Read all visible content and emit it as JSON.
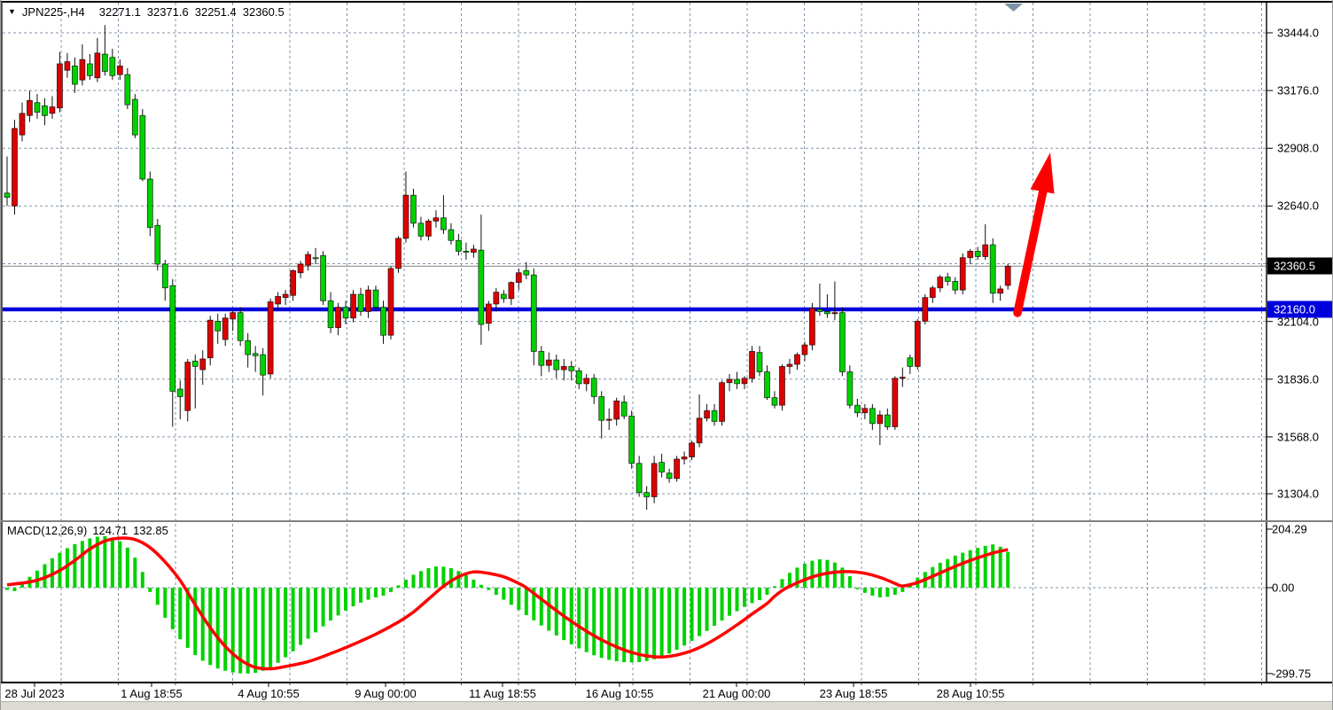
{
  "title": {
    "symbol_period": "JPN225-,H4",
    "open": "32271.1",
    "high": "32371.6",
    "low": "32251.4",
    "close": "32360.5"
  },
  "macd_panel": {
    "label": "MACD(12,26,9)",
    "main_value": "124.71",
    "signal_value": "132.85"
  },
  "badges": {
    "current_price": "32360.5",
    "support_price": "32160.0"
  },
  "colors": {
    "bull_candle": "#dd0101",
    "bear_candle": "#00d200",
    "wick": "#111111",
    "grid": "#8095aa",
    "macd_histogram": "#00d200",
    "macd_signal": "#ff0000",
    "support_line": "#0000dd",
    "current_price_line": "#909090",
    "current_badge_bg": "#000000",
    "support_badge_bg": "#0000dd",
    "arrow": "#ff0000",
    "shift_marker": "#7e93a8"
  },
  "chart_data": {
    "type": "candlestick_with_macd",
    "symbol": "JPN225-,H4",
    "timeframe": "H4",
    "price_axis_labels": [
      "33444.0",
      "33176.0",
      "32908.0",
      "32640.0",
      "32104.0",
      "31836.0",
      "31568.0",
      "31304.0"
    ],
    "hidden_grid_level": 32372.0,
    "time_axis_labels": [
      "28 Jul 2023",
      "1 Aug 18:55",
      "4 Aug 10:55",
      "9 Aug 00:00",
      "11 Aug 18:55",
      "16 Aug 10:55",
      "21 Aug 00:00",
      "23 Aug 18:55",
      "28 Aug 10:55"
    ],
    "levels": {
      "support_line": 32160.0,
      "current_price": 32360.5
    },
    "annotation": "red arrow projecting upward breakout from 32160 support",
    "candles": [
      [
        32700,
        32870,
        32640,
        32680
      ],
      [
        32640,
        33040,
        32600,
        33000
      ],
      [
        32970,
        33120,
        32940,
        33070
      ],
      [
        33060,
        33175,
        33030,
        33130
      ],
      [
        33120,
        33160,
        33045,
        33075
      ],
      [
        33105,
        33140,
        33015,
        33060
      ],
      [
        33070,
        33150,
        33045,
        33100
      ],
      [
        33095,
        33355,
        33075,
        33300
      ],
      [
        33270,
        33350,
        33235,
        33310
      ],
      [
        33290,
        33330,
        33165,
        33205
      ],
      [
        33225,
        33390,
        33200,
        33320
      ],
      [
        33300,
        33345,
        33225,
        33245
      ],
      [
        33235,
        33420,
        33215,
        33350
      ],
      [
        33345,
        33480,
        33245,
        33265
      ],
      [
        33330,
        33370,
        33225,
        33245
      ],
      [
        33250,
        33320,
        33225,
        33290
      ],
      [
        33250,
        33280,
        33090,
        33110
      ],
      [
        33135,
        33160,
        32955,
        32970
      ],
      [
        33060,
        33090,
        32755,
        32765
      ],
      [
        32765,
        32800,
        32500,
        32540
      ],
      [
        32550,
        32580,
        32340,
        32370
      ],
      [
        32370,
        32390,
        32200,
        32260
      ],
      [
        32270,
        32300,
        31615,
        31780
      ],
      [
        31790,
        31830,
        31650,
        31755
      ],
      [
        31690,
        31930,
        31640,
        31915
      ],
      [
        31920,
        31950,
        31700,
        31895
      ],
      [
        31880,
        31970,
        31810,
        31930
      ],
      [
        31935,
        32130,
        31900,
        32110
      ],
      [
        32105,
        32140,
        32000,
        32060
      ],
      [
        32020,
        32140,
        31990,
        32120
      ],
      [
        32115,
        32155,
        32060,
        32145
      ],
      [
        32145,
        32170,
        31990,
        32015
      ],
      [
        32015,
        32050,
        31890,
        31950
      ],
      [
        31955,
        31990,
        31870,
        31945
      ],
      [
        31950,
        31980,
        31760,
        31855
      ],
      [
        31860,
        32210,
        31840,
        32195
      ],
      [
        32185,
        32240,
        32155,
        32220
      ],
      [
        32215,
        32250,
        32180,
        32230
      ],
      [
        32225,
        32345,
        32200,
        32340
      ],
      [
        32330,
        32385,
        32305,
        32370
      ],
      [
        32365,
        32430,
        32340,
        32415
      ],
      [
        32400,
        32445,
        32370,
        32395
      ],
      [
        32410,
        32430,
        32180,
        32200
      ],
      [
        32200,
        32240,
        32050,
        32075
      ],
      [
        32075,
        32190,
        32040,
        32170
      ],
      [
        32170,
        32200,
        32090,
        32120
      ],
      [
        32120,
        32250,
        32100,
        32230
      ],
      [
        32230,
        32260,
        32130,
        32150
      ],
      [
        32150,
        32270,
        32120,
        32250
      ],
      [
        32250,
        32270,
        32150,
        32170
      ],
      [
        32170,
        32200,
        32000,
        32040
      ],
      [
        32040,
        32360,
        32020,
        32350
      ],
      [
        32350,
        32500,
        32330,
        32490
      ],
      [
        32490,
        32800,
        32470,
        32690
      ],
      [
        32690,
        32720,
        32540,
        32560
      ],
      [
        32560,
        32590,
        32480,
        32500
      ],
      [
        32500,
        32580,
        32480,
        32570
      ],
      [
        32570,
        32620,
        32540,
        32585
      ],
      [
        32585,
        32690,
        32510,
        32530
      ],
      [
        32530,
        32560,
        32460,
        32480
      ],
      [
        32480,
        32510,
        32410,
        32430
      ],
      [
        32430,
        32470,
        32390,
        32425
      ],
      [
        32425,
        32460,
        32400,
        32440
      ],
      [
        32435,
        32600,
        31995,
        32090
      ],
      [
        32095,
        32200,
        32060,
        32185
      ],
      [
        32185,
        32260,
        32150,
        32240
      ],
      [
        32230,
        32250,
        32190,
        32210
      ],
      [
        32210,
        32290,
        32180,
        32285
      ],
      [
        32285,
        32350,
        32250,
        32330
      ],
      [
        32340,
        32380,
        32300,
        32320
      ],
      [
        32320,
        32350,
        31900,
        31965
      ],
      [
        31965,
        31990,
        31850,
        31900
      ],
      [
        31900,
        31960,
        31870,
        31925
      ],
      [
        31925,
        31950,
        31840,
        31880
      ],
      [
        31880,
        31930,
        31830,
        31895
      ],
      [
        31895,
        31920,
        31830,
        31875
      ],
      [
        31875,
        31890,
        31790,
        31815
      ],
      [
        31815,
        31860,
        31780,
        31840
      ],
      [
        31840,
        31860,
        31720,
        31755
      ],
      [
        31755,
        31780,
        31560,
        31645
      ],
      [
        31645,
        31700,
        31600,
        31650
      ],
      [
        31650,
        31750,
        31620,
        31735
      ],
      [
        31730,
        31760,
        31650,
        31665
      ],
      [
        31665,
        31690,
        31420,
        31445
      ],
      [
        31445,
        31480,
        31290,
        31310
      ],
      [
        31310,
        31340,
        31230,
        31290
      ],
      [
        31290,
        31480,
        31260,
        31445
      ],
      [
        31450,
        31490,
        31380,
        31405
      ],
      [
        31400,
        31420,
        31355,
        31375
      ],
      [
        31375,
        31480,
        31360,
        31465
      ],
      [
        31465,
        31500,
        31440,
        31475
      ],
      [
        31475,
        31550,
        31460,
        31540
      ],
      [
        31540,
        31765,
        31520,
        31655
      ],
      [
        31655,
        31720,
        31640,
        31690
      ],
      [
        31690,
        31720,
        31620,
        31640
      ],
      [
        31640,
        31830,
        31620,
        31820
      ],
      [
        31820,
        31860,
        31780,
        31835
      ],
      [
        31835,
        31870,
        31790,
        31815
      ],
      [
        31815,
        31850,
        31790,
        31840
      ],
      [
        31840,
        31990,
        31820,
        31965
      ],
      [
        31960,
        31990,
        31850,
        31870
      ],
      [
        31870,
        31900,
        31740,
        31750
      ],
      [
        31750,
        31780,
        31700,
        31715
      ],
      [
        31715,
        31905,
        31690,
        31895
      ],
      [
        31895,
        31930,
        31860,
        31905
      ],
      [
        31905,
        31960,
        31880,
        31950
      ],
      [
        31950,
        32010,
        31920,
        31995
      ],
      [
        31995,
        32190,
        31970,
        32165
      ],
      [
        32160,
        32280,
        32130,
        32150
      ],
      [
        32150,
        32230,
        32120,
        32140
      ],
      [
        32140,
        32290,
        32110,
        32145
      ],
      [
        32145,
        32170,
        31850,
        31870
      ],
      [
        31870,
        31900,
        31700,
        31715
      ],
      [
        31715,
        31745,
        31660,
        31680
      ],
      [
        31680,
        31720,
        31650,
        31700
      ],
      [
        31700,
        31720,
        31600,
        31630
      ],
      [
        31630,
        31690,
        31530,
        31670
      ],
      [
        31670,
        31700,
        31600,
        31615
      ],
      [
        31615,
        31850,
        31600,
        31840
      ],
      [
        31840,
        31890,
        31800,
        31845
      ],
      [
        31935,
        31950,
        31860,
        31895
      ],
      [
        31895,
        32115,
        31880,
        32105
      ],
      [
        32105,
        32230,
        32090,
        32215
      ],
      [
        32215,
        32270,
        32190,
        32260
      ],
      [
        32260,
        32320,
        32240,
        32310
      ],
      [
        32310,
        32330,
        32270,
        32290
      ],
      [
        32290,
        32310,
        32230,
        32250
      ],
      [
        32250,
        32420,
        32230,
        32400
      ],
      [
        32400,
        32440,
        32370,
        32430
      ],
      [
        32430,
        32450,
        32390,
        32405
      ],
      [
        32405,
        32555,
        32390,
        32460
      ],
      [
        32460,
        32490,
        32190,
        32235
      ],
      [
        32235,
        32270,
        32200,
        32255
      ],
      [
        32271.1,
        32371.6,
        32251.4,
        32360.5
      ]
    ],
    "macd": {
      "axis_labels": [
        "204.29",
        "0.00",
        "-299.75"
      ],
      "histogram": [
        -8,
        -12,
        15,
        38,
        60,
        82,
        103,
        122,
        138,
        152,
        163,
        172,
        178,
        180,
        175,
        162,
        140,
        105,
        55,
        -15,
        -60,
        -105,
        -145,
        -180,
        -210,
        -235,
        -255,
        -270,
        -282,
        -290,
        -296,
        -299,
        -299.75,
        -297,
        -290,
        -278,
        -262,
        -243,
        -222,
        -200,
        -178,
        -156,
        -135,
        -115,
        -97,
        -80,
        -65,
        -52,
        -42,
        -34,
        -28,
        -15,
        8,
        28,
        45,
        58,
        68,
        74,
        73,
        68,
        58,
        44,
        28,
        10,
        -8,
        -25,
        -42,
        -60,
        -78,
        -96,
        -114,
        -132,
        -150,
        -167,
        -183,
        -198,
        -212,
        -225,
        -236,
        -245,
        -252,
        -257,
        -260,
        -261,
        -260,
        -256,
        -250,
        -241,
        -230,
        -217,
        -202,
        -186,
        -169,
        -151,
        -133,
        -115,
        -98,
        -82,
        -67,
        -54,
        -43,
        -25,
        5,
        30,
        52,
        70,
        84,
        94,
        99,
        97,
        88,
        70,
        40,
        -5,
        -18,
        -28,
        -34,
        -32,
        -25,
        -15,
        12,
        35,
        55,
        72,
        87,
        100,
        112,
        122,
        131,
        139,
        146,
        151,
        143,
        124.71
      ],
      "signal_points": [
        [
          0,
          10
        ],
        [
          3,
          20
        ],
        [
          5,
          35
        ],
        [
          7,
          60
        ],
        [
          9,
          95
        ],
        [
          11,
          135
        ],
        [
          13,
          163
        ],
        [
          15,
          173
        ],
        [
          17,
          168
        ],
        [
          19,
          140
        ],
        [
          21,
          90
        ],
        [
          23,
          25
        ],
        [
          25,
          -60
        ],
        [
          27,
          -140
        ],
        [
          29,
          -205
        ],
        [
          31,
          -252
        ],
        [
          33,
          -278
        ],
        [
          35,
          -283
        ],
        [
          37,
          -275
        ],
        [
          40,
          -258
        ],
        [
          43,
          -230
        ],
        [
          46,
          -198
        ],
        [
          49,
          -162
        ],
        [
          52,
          -120
        ],
        [
          54,
          -85
        ],
        [
          56,
          -40
        ],
        [
          58,
          5
        ],
        [
          60,
          38
        ],
        [
          62,
          55
        ],
        [
          64,
          50
        ],
        [
          66,
          38
        ],
        [
          68,
          15
        ],
        [
          69,
          0
        ],
        [
          71,
          -40
        ],
        [
          73,
          -80
        ],
        [
          75,
          -118
        ],
        [
          77,
          -152
        ],
        [
          79,
          -182
        ],
        [
          81,
          -207
        ],
        [
          83,
          -226
        ],
        [
          85,
          -238
        ],
        [
          87,
          -242
        ],
        [
          89,
          -235
        ],
        [
          91,
          -220
        ],
        [
          93,
          -196
        ],
        [
          95,
          -165
        ],
        [
          97,
          -130
        ],
        [
          99,
          -92
        ],
        [
          101,
          -55
        ],
        [
          102,
          -30
        ],
        [
          103,
          -10
        ],
        [
          104,
          5
        ],
        [
          106,
          28
        ],
        [
          108,
          45
        ],
        [
          110,
          54
        ],
        [
          112,
          56
        ],
        [
          114,
          50
        ],
        [
          116,
          36
        ],
        [
          118,
          15
        ],
        [
          119,
          6
        ],
        [
          121,
          18
        ],
        [
          123,
          40
        ],
        [
          125,
          63
        ],
        [
          127,
          85
        ],
        [
          129,
          104
        ],
        [
          131,
          121
        ],
        [
          133,
          132.85
        ]
      ]
    }
  }
}
